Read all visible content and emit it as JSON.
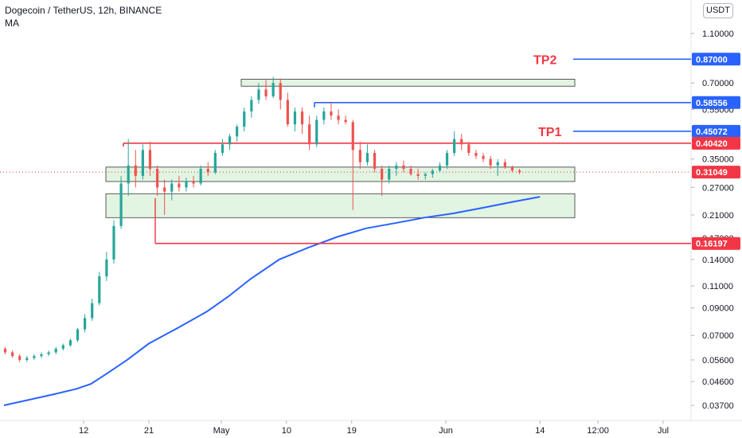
{
  "chart_data": {
    "type": "candlestick",
    "title": "Dogecoin / TetherUS, 12h, BINANCE",
    "indicator_label": "MA",
    "currency": "USDT",
    "colors": {
      "up": "#26a69a",
      "down": "#ef5350",
      "ma": "#2962ff",
      "zone": "#d8f0d8",
      "support": "#f23645",
      "target": "#2962ff"
    },
    "y_scale": "log",
    "y_ticks": [
      "1.10000",
      "0.87000",
      "0.70000",
      "0.55000",
      "0.45000",
      "0.35000",
      "0.27000",
      "0.21000",
      "0.17000",
      "0.14000",
      "0.11000",
      "0.09000",
      "0.07000",
      "0.05600",
      "0.04600",
      "0.03700"
    ],
    "x_ticks": [
      "12",
      "21",
      "May",
      "10",
      "19",
      "Jun",
      "14",
      "12:00",
      "Jul"
    ],
    "levels": [
      {
        "price": "0.87000",
        "kind": "target",
        "label": "TP2"
      },
      {
        "price": "0.58556",
        "kind": "target"
      },
      {
        "price": "0.45072",
        "kind": "target",
        "label": "TP1"
      },
      {
        "price": "0.40420",
        "kind": "support"
      },
      {
        "price": "0.31049",
        "kind": "last"
      },
      {
        "price": "0.16197",
        "kind": "support"
      }
    ],
    "zones": [
      {
        "top": 0.725,
        "bottom": 0.68
      },
      {
        "top": 0.325,
        "bottom": 0.285
      },
      {
        "top": 0.255,
        "bottom": 0.205
      }
    ],
    "ma_points": [
      [
        "2021-04-01",
        0.037
      ],
      [
        "2021-04-08",
        0.041
      ],
      [
        "2021-04-11",
        0.043
      ],
      [
        "2021-04-13",
        0.045
      ],
      [
        "2021-04-15",
        0.049
      ],
      [
        "2021-04-18",
        0.056
      ],
      [
        "2021-04-21",
        0.065
      ],
      [
        "2021-04-25",
        0.075
      ],
      [
        "2021-04-29",
        0.087
      ],
      [
        "2021-05-02",
        0.1
      ],
      [
        "2021-05-05",
        0.117
      ],
      [
        "2021-05-09",
        0.14
      ],
      [
        "2021-05-13",
        0.156
      ],
      [
        "2021-05-17",
        0.172
      ],
      [
        "2021-05-21",
        0.186
      ],
      [
        "2021-05-25",
        0.195
      ],
      [
        "2021-05-29",
        0.205
      ],
      [
        "2021-06-02",
        0.213
      ],
      [
        "2021-06-06",
        0.224
      ],
      [
        "2021-06-10",
        0.236
      ],
      [
        "2021-06-14",
        0.248
      ]
    ],
    "candles": [
      [
        "2021-04-01",
        0.062,
        0.063,
        0.059,
        0.06
      ],
      [
        "2021-04-02",
        0.06,
        0.061,
        0.057,
        0.058
      ],
      [
        "2021-04-03",
        0.058,
        0.059,
        0.055,
        0.056
      ],
      [
        "2021-04-04",
        0.056,
        0.058,
        0.055,
        0.057
      ],
      [
        "2021-04-05",
        0.057,
        0.059,
        0.056,
        0.058
      ],
      [
        "2021-04-06",
        0.058,
        0.06,
        0.057,
        0.059
      ],
      [
        "2021-04-07",
        0.059,
        0.061,
        0.058,
        0.06
      ],
      [
        "2021-04-08",
        0.06,
        0.063,
        0.059,
        0.062
      ],
      [
        "2021-04-09",
        0.062,
        0.065,
        0.061,
        0.064
      ],
      [
        "2021-04-10",
        0.064,
        0.068,
        0.063,
        0.067
      ],
      [
        "2021-04-11",
        0.067,
        0.075,
        0.066,
        0.074
      ],
      [
        "2021-04-12",
        0.074,
        0.085,
        0.072,
        0.082
      ],
      [
        "2021-04-13",
        0.082,
        0.098,
        0.08,
        0.094
      ],
      [
        "2021-04-14",
        0.094,
        0.125,
        0.092,
        0.12
      ],
      [
        "2021-04-15",
        0.12,
        0.15,
        0.115,
        0.14
      ],
      [
        "2021-04-16",
        0.14,
        0.2,
        0.135,
        0.19
      ],
      [
        "2021-04-17",
        0.19,
        0.3,
        0.185,
        0.28
      ],
      [
        "2021-04-18",
        0.28,
        0.42,
        0.25,
        0.33
      ],
      [
        "2021-04-19",
        0.33,
        0.38,
        0.27,
        0.3
      ],
      [
        "2021-04-20",
        0.3,
        0.4,
        0.29,
        0.38
      ],
      [
        "2021-04-21",
        0.38,
        0.41,
        0.3,
        0.32
      ],
      [
        "2021-04-22",
        0.32,
        0.33,
        0.25,
        0.27
      ],
      [
        "2021-04-23",
        0.27,
        0.29,
        0.21,
        0.26
      ],
      [
        "2021-04-24",
        0.26,
        0.29,
        0.24,
        0.28
      ],
      [
        "2021-04-25",
        0.28,
        0.3,
        0.26,
        0.27
      ],
      [
        "2021-04-26",
        0.27,
        0.295,
        0.26,
        0.285
      ],
      [
        "2021-04-27",
        0.285,
        0.3,
        0.27,
        0.28
      ],
      [
        "2021-04-28",
        0.28,
        0.33,
        0.275,
        0.32
      ],
      [
        "2021-04-29",
        0.32,
        0.34,
        0.3,
        0.31
      ],
      [
        "2021-04-30",
        0.31,
        0.38,
        0.305,
        0.37
      ],
      [
        "2021-05-01",
        0.37,
        0.42,
        0.36,
        0.4
      ],
      [
        "2021-05-02",
        0.4,
        0.44,
        0.38,
        0.43
      ],
      [
        "2021-05-03",
        0.43,
        0.48,
        0.41,
        0.47
      ],
      [
        "2021-05-04",
        0.47,
        0.56,
        0.45,
        0.54
      ],
      [
        "2021-05-05",
        0.54,
        0.62,
        0.51,
        0.6
      ],
      [
        "2021-05-06",
        0.6,
        0.7,
        0.58,
        0.66
      ],
      [
        "2021-05-07",
        0.66,
        0.72,
        0.6,
        0.62
      ],
      [
        "2021-05-08",
        0.62,
        0.74,
        0.61,
        0.7
      ],
      [
        "2021-05-09",
        0.7,
        0.73,
        0.55,
        0.6
      ],
      [
        "2021-05-10",
        0.6,
        0.64,
        0.47,
        0.48
      ],
      [
        "2021-05-11",
        0.48,
        0.56,
        0.45,
        0.54
      ],
      [
        "2021-05-12",
        0.54,
        0.56,
        0.44,
        0.48
      ],
      [
        "2021-05-13",
        0.48,
        0.52,
        0.38,
        0.4
      ],
      [
        "2021-05-14",
        0.4,
        0.52,
        0.39,
        0.5
      ],
      [
        "2021-05-15",
        0.5,
        0.56,
        0.48,
        0.54
      ],
      [
        "2021-05-16",
        0.54,
        0.59,
        0.5,
        0.52
      ],
      [
        "2021-05-17",
        0.52,
        0.55,
        0.48,
        0.5
      ],
      [
        "2021-05-18",
        0.5,
        0.52,
        0.48,
        0.49
      ],
      [
        "2021-05-19",
        0.49,
        0.5,
        0.22,
        0.38
      ],
      [
        "2021-05-20",
        0.38,
        0.41,
        0.32,
        0.34
      ],
      [
        "2021-05-21",
        0.34,
        0.4,
        0.33,
        0.37
      ],
      [
        "2021-05-22",
        0.37,
        0.38,
        0.31,
        0.32
      ],
      [
        "2021-05-23",
        0.32,
        0.33,
        0.25,
        0.29
      ],
      [
        "2021-05-24",
        0.29,
        0.33,
        0.28,
        0.32
      ],
      [
        "2021-05-25",
        0.32,
        0.34,
        0.3,
        0.33
      ],
      [
        "2021-05-26",
        0.33,
        0.345,
        0.31,
        0.32
      ],
      [
        "2021-05-27",
        0.32,
        0.33,
        0.3,
        0.305
      ],
      [
        "2021-05-28",
        0.305,
        0.32,
        0.29,
        0.3
      ],
      [
        "2021-05-29",
        0.3,
        0.31,
        0.29,
        0.305
      ],
      [
        "2021-05-30",
        0.305,
        0.32,
        0.295,
        0.315
      ],
      [
        "2021-05-31",
        0.315,
        0.34,
        0.31,
        0.33
      ],
      [
        "2021-06-01",
        0.33,
        0.38,
        0.32,
        0.37
      ],
      [
        "2021-06-02",
        0.37,
        0.45,
        0.36,
        0.42
      ],
      [
        "2021-06-03",
        0.42,
        0.44,
        0.38,
        0.4
      ],
      [
        "2021-06-04",
        0.4,
        0.41,
        0.36,
        0.37
      ],
      [
        "2021-06-05",
        0.37,
        0.38,
        0.35,
        0.36
      ],
      [
        "2021-06-06",
        0.36,
        0.37,
        0.34,
        0.35
      ],
      [
        "2021-06-07",
        0.35,
        0.36,
        0.32,
        0.33
      ],
      [
        "2021-06-08",
        0.33,
        0.35,
        0.3,
        0.34
      ],
      [
        "2021-06-09",
        0.34,
        0.35,
        0.32,
        0.325
      ],
      [
        "2021-06-10",
        0.325,
        0.33,
        0.31,
        0.315
      ],
      [
        "2021-06-11",
        0.315,
        0.32,
        0.305,
        0.31
      ]
    ],
    "interval_hours": 12
  }
}
